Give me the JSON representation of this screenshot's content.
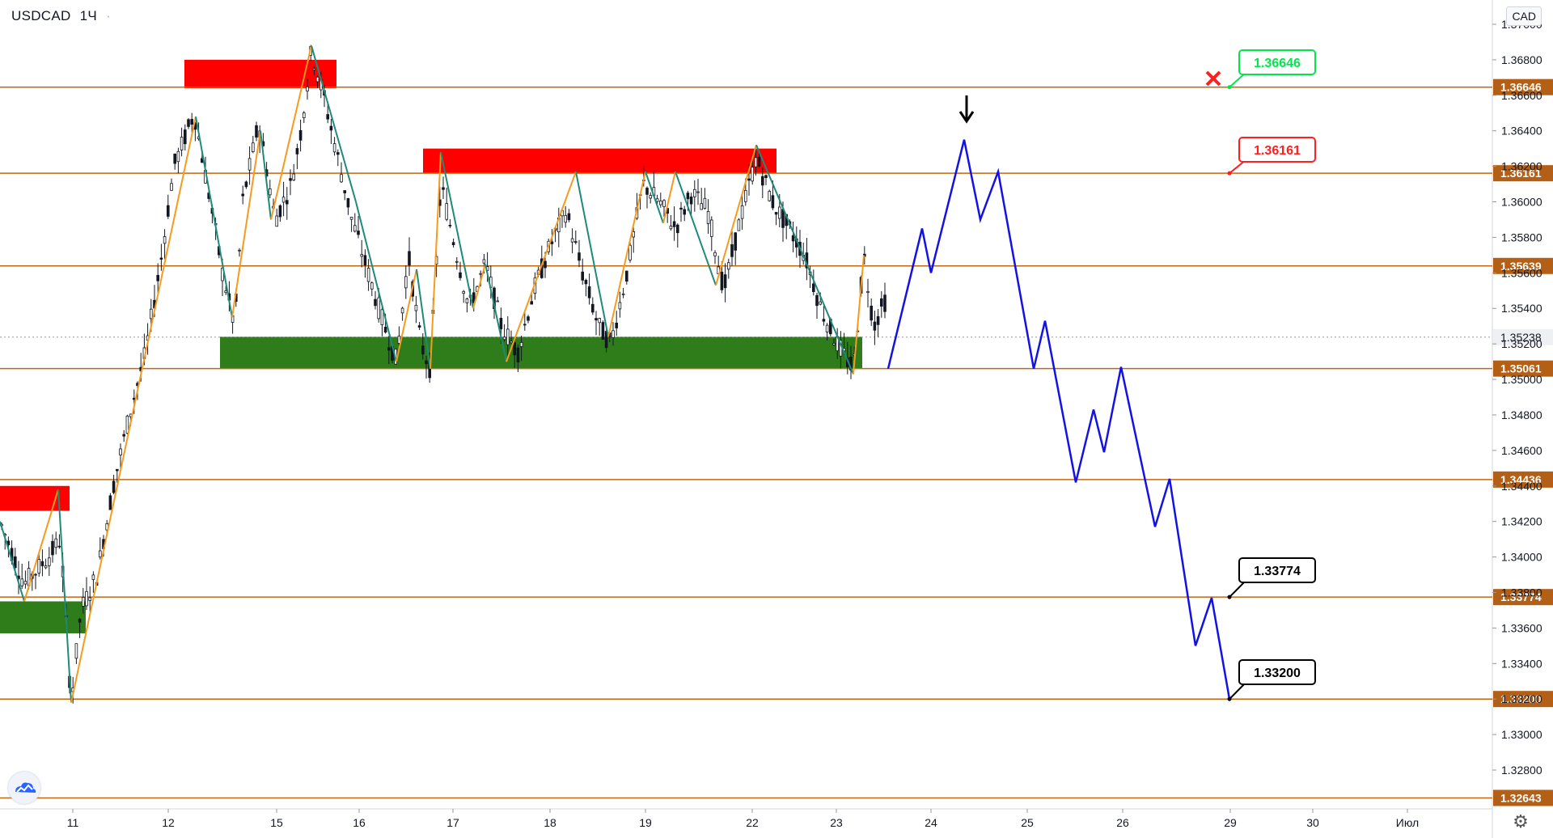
{
  "header": {
    "symbol": "USDCAD",
    "interval": "1Ч",
    "currency": "CAD"
  },
  "chart_data": {
    "type": "candlestick",
    "symbol": "USDCAD",
    "interval": "1Ч",
    "y_range": [
      1.3255,
      1.3728
    ],
    "y_ticks": [
      "1.37000",
      "1.36800",
      "1.36600",
      "1.36400",
      "1.36200",
      "1.36000",
      "1.35800",
      "1.35600",
      "1.35400",
      "1.35200",
      "1.35000",
      "1.34800",
      "1.34600",
      "1.34400",
      "1.34200",
      "1.34000",
      "1.33800",
      "1.33600",
      "1.33400",
      "1.33200",
      "1.33000",
      "1.32800"
    ],
    "x_ticks": [
      "11",
      "12",
      "15",
      "16",
      "17",
      "18",
      "19",
      "22",
      "23",
      "24",
      "25",
      "26",
      "29",
      "30",
      "Июл"
    ],
    "levels": [
      {
        "label": "1.36646",
        "value": 1.36646
      },
      {
        "label": "1.36161",
        "value": 1.36161
      },
      {
        "label": "1.35639",
        "value": 1.35639
      },
      {
        "label": "1.35061",
        "value": 1.35061
      },
      {
        "label": "1.34436",
        "value": 1.34436
      },
      {
        "label": "1.33774",
        "value": 1.33774
      },
      {
        "label": "1.33200",
        "value": 1.332
      },
      {
        "label": "1.32643",
        "value": 1.32643
      }
    ],
    "last_price": {
      "label": "1.35238",
      "value": 1.35238
    },
    "zones": [
      {
        "color": "#ff0000",
        "from": "day 12",
        "to": "day 15",
        "top": 1.368,
        "bottom": 1.3664
      },
      {
        "color": "#ff0000",
        "from": "day 16",
        "to": "day 22",
        "top": 1.363,
        "bottom": 1.3616
      },
      {
        "color": "#2e7d1a",
        "from": "day 12-15",
        "to": "day 23",
        "top": 1.3524,
        "bottom": 1.3506
      },
      {
        "color": "#ff0000",
        "from": "day 10",
        "to": "day 11",
        "top": 1.344,
        "bottom": 1.3426
      },
      {
        "color": "#2e7d1a",
        "from": "day 10",
        "to": "day 11",
        "top": 1.3375,
        "bottom": 1.3357
      }
    ],
    "projection": [
      [
        "23",
        1.3506
      ],
      [
        "24",
        1.3585
      ],
      [
        "24",
        1.356
      ],
      [
        "24",
        1.3635
      ],
      [
        "24",
        1.359
      ],
      [
        "25",
        1.3617
      ],
      [
        "25",
        1.3506
      ],
      [
        "25",
        1.3533
      ],
      [
        "25",
        1.3442
      ],
      [
        "26",
        1.3483
      ],
      [
        "26",
        1.3459
      ],
      [
        "26",
        1.3507
      ],
      [
        "26",
        1.3417
      ],
      [
        "29",
        1.3444
      ],
      [
        "29",
        1.335
      ],
      [
        "29",
        1.3377
      ],
      [
        "29",
        1.332
      ]
    ],
    "callouts": [
      {
        "text": "1.36646",
        "color": "#00e64d",
        "status": "cancelled",
        "mark": "✖"
      },
      {
        "text": "1.36161",
        "color": "#ff1f1f"
      },
      {
        "text": "1.33774",
        "color": "#000000"
      },
      {
        "text": "1.33200",
        "color": "#000000"
      }
    ],
    "arrow": {
      "direction": "down",
      "at": "24"
    }
  },
  "colors": {
    "level_line": "#c2670f",
    "level_tag": "#b35f16",
    "projection": "#1212e6",
    "zigzag_up": "#f79a1e",
    "zigzag_down": "#1e8a7a",
    "candle": "#131722",
    "red_zone": "#ff0000",
    "green_zone": "#2e7d1a"
  },
  "icons": {
    "logo": "tradingview-cloud-icon",
    "settings": "gear-icon",
    "cancel": "red-x-icon",
    "arrow": "down-arrow-icon"
  }
}
